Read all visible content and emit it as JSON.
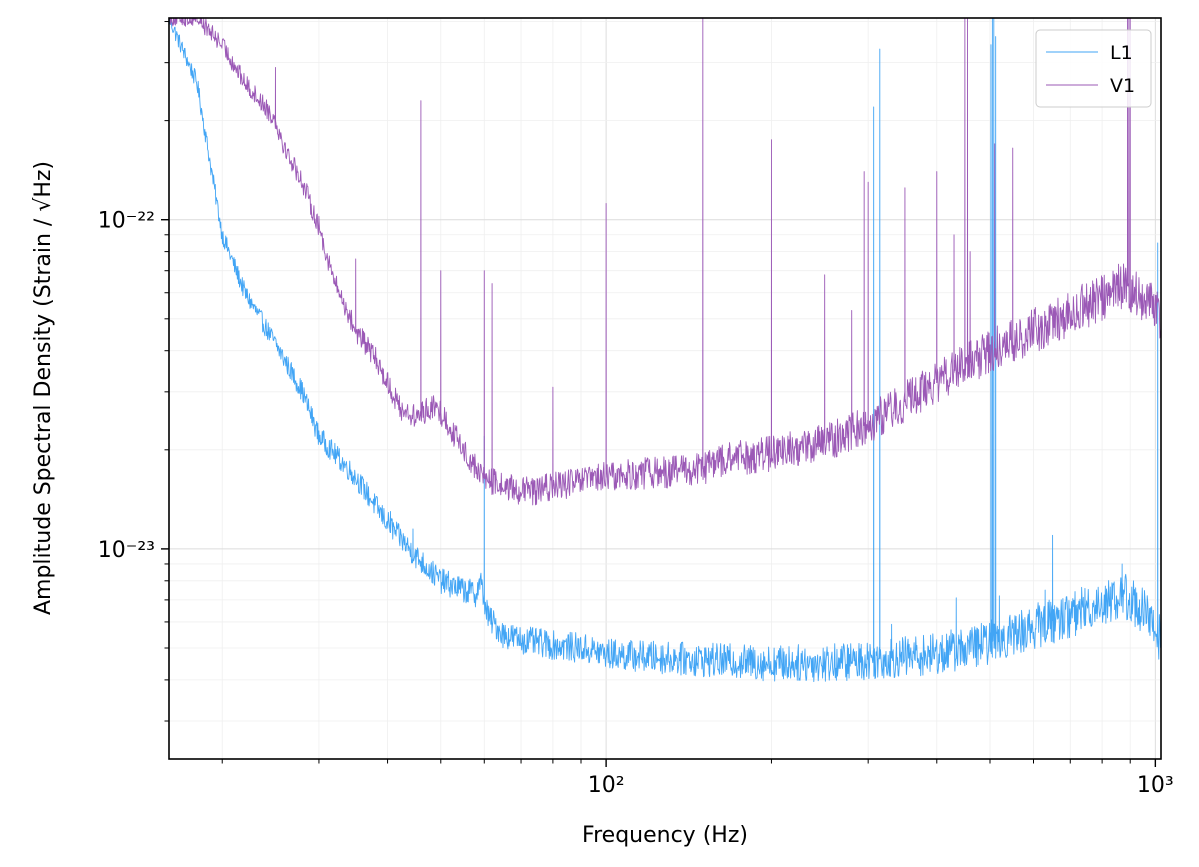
{
  "chart_data": {
    "type": "line",
    "title": "",
    "xlabel": "Frequency (Hz)",
    "ylabel": "Amplitude Spectral Density (Strain / √Hz)",
    "xscale": "log",
    "yscale": "log",
    "xlim": [
      16,
      1024
    ],
    "ylim": [
      2.3e-24,
      4.1e-22
    ],
    "grid": "on (major and minor)",
    "legend_position": "top-right",
    "x_ticks": [
      {
        "value": 100,
        "label": "10²"
      },
      {
        "value": 1000,
        "label": "10³"
      }
    ],
    "y_ticks": [
      {
        "value": 1e-23,
        "label": "10⁻²³"
      },
      {
        "value": 1e-22,
        "label": "10⁻²²"
      }
    ],
    "series": [
      {
        "name": "L1",
        "color": "#42a5f5",
        "x": [
          16,
          18,
          19,
          20,
          22,
          25,
          28,
          30,
          35,
          40,
          45,
          50,
          55,
          58,
          59,
          60,
          61,
          65,
          70,
          80,
          90,
          100,
          120,
          150,
          200,
          250,
          300,
          350,
          400,
          450,
          500,
          550,
          600,
          700,
          800,
          880,
          950,
          1000,
          1024
        ],
        "y": [
          4.1e-22,
          2.6e-22,
          1.5e-22,
          9e-23,
          6e-23,
          4.2e-23,
          3e-23,
          2.2e-23,
          1.65e-23,
          1.2e-23,
          9.5e-24,
          8e-24,
          7.5e-24,
          7.3e-24,
          8e-24,
          7e-24,
          6.2e-24,
          5.5e-24,
          5.3e-24,
          5.1e-24,
          5e-24,
          4.8e-24,
          4.7e-24,
          4.6e-24,
          4.5e-24,
          4.5e-24,
          4.6e-24,
          4.7e-24,
          4.8e-24,
          5e-24,
          5.2e-24,
          5.5e-24,
          5.8e-24,
          6.3e-24,
          6.9e-24,
          7.2e-24,
          6.5e-24,
          5.6e-24,
          5.4e-24
        ],
        "spikes": [
          {
            "x": 40.5,
            "y": 1.3e-23
          },
          {
            "x": 44.5,
            "y": 1.15e-23
          },
          {
            "x": 60,
            "y": 2.2e-23
          },
          {
            "x": 307,
            "y": 2.2e-22
          },
          {
            "x": 315,
            "y": 3.3e-22
          },
          {
            "x": 331,
            "y": 5.9e-24
          },
          {
            "x": 434,
            "y": 7.1e-24
          },
          {
            "x": 502,
            "y": 3.4e-22
          },
          {
            "x": 505,
            "y": 4.1e-22
          },
          {
            "x": 508,
            "y": 4.1e-22
          },
          {
            "x": 512,
            "y": 3.6e-22
          },
          {
            "x": 520,
            "y": 7.2e-24
          },
          {
            "x": 630,
            "y": 7.5e-24
          },
          {
            "x": 650,
            "y": 1.1e-23
          },
          {
            "x": 870,
            "y": 9e-24
          },
          {
            "x": 1010,
            "y": 8.5e-23
          }
        ]
      },
      {
        "name": "V1",
        "color": "#9b59b6",
        "x": [
          16,
          18,
          20,
          22,
          24,
          25,
          26,
          28,
          30,
          32,
          35,
          38,
          40,
          42,
          45,
          48,
          50,
          55,
          58,
          60,
          62,
          65,
          70,
          75,
          80,
          90,
          100,
          120,
          150,
          160,
          200,
          250,
          300,
          350,
          400,
          450,
          500,
          550,
          600,
          700,
          800,
          880,
          920,
          960,
          1000,
          1024
        ],
        "y": [
          4.1e-22,
          4.1e-22,
          3.4e-22,
          2.6e-22,
          2.2e-22,
          2e-22,
          1.65e-22,
          1.3e-22,
          9.5e-23,
          6.5e-23,
          4.6e-23,
          3.8e-23,
          3.2e-23,
          2.7e-23,
          2.5e-23,
          2.7e-23,
          2.6e-23,
          2e-23,
          1.75e-23,
          1.65e-23,
          1.6e-23,
          1.55e-23,
          1.5e-23,
          1.5e-23,
          1.55e-23,
          1.6e-23,
          1.65e-23,
          1.7e-23,
          1.75e-23,
          1.85e-23,
          1.95e-23,
          2.1e-23,
          2.4e-23,
          2.8e-23,
          3.2e-23,
          3.6e-23,
          4e-23,
          4.3e-23,
          4.6e-23,
          5.2e-23,
          5.8e-23,
          6.4e-23,
          6e-23,
          5.7e-23,
          5.4e-23,
          5e-23
        ],
        "spikes": [
          {
            "x": 25,
            "y": 2.9e-22
          },
          {
            "x": 35,
            "y": 7.6e-23
          },
          {
            "x": 46,
            "y": 2.3e-22
          },
          {
            "x": 50,
            "y": 7e-23
          },
          {
            "x": 60,
            "y": 7e-23
          },
          {
            "x": 62,
            "y": 6.4e-23
          },
          {
            "x": 80,
            "y": 3.1e-23
          },
          {
            "x": 100,
            "y": 1.12e-22
          },
          {
            "x": 150,
            "y": 4.1e-22
          },
          {
            "x": 200,
            "y": 1.75e-22
          },
          {
            "x": 250,
            "y": 6.8e-23
          },
          {
            "x": 280,
            "y": 5.3e-23
          },
          {
            "x": 295,
            "y": 1.4e-22
          },
          {
            "x": 300,
            "y": 1.3e-22
          },
          {
            "x": 350,
            "y": 1.25e-22
          },
          {
            "x": 400,
            "y": 1.4e-22
          },
          {
            "x": 430,
            "y": 9e-23
          },
          {
            "x": 450,
            "y": 4.1e-22
          },
          {
            "x": 455,
            "y": 4.1e-22
          },
          {
            "x": 460,
            "y": 8e-23
          },
          {
            "x": 510,
            "y": 1.7e-22
          },
          {
            "x": 550,
            "y": 1.65e-22
          },
          {
            "x": 890,
            "y": 4.1e-22
          },
          {
            "x": 895,
            "y": 4.1e-22
          },
          {
            "x": 900,
            "y": 4.1e-22
          }
        ]
      }
    ]
  }
}
